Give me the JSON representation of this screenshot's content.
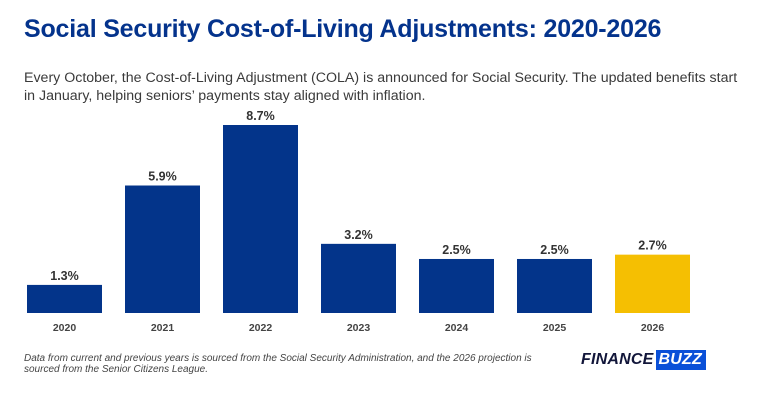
{
  "header": {
    "title": "Social Security Cost-of-Living Adjustments: 2020-2026",
    "subtitle": "Every October, the Cost-of-Living Adjustment (COLA) is announced for Social Security. The updated benefits start in January, helping seniors’ payments stay aligned with inflation."
  },
  "chart_data": {
    "type": "bar",
    "title": "Social Security Cost-of-Living Adjustments: 2020-2026",
    "xlabel": "",
    "ylabel": "",
    "categories": [
      "2020",
      "2021",
      "2022",
      "2023",
      "2024",
      "2025",
      "2026"
    ],
    "values": [
      1.3,
      5.9,
      8.7,
      3.2,
      2.5,
      2.5,
      2.7
    ],
    "value_labels": [
      "1.3%",
      "5.9%",
      "8.7%",
      "3.2%",
      "2.5%",
      "2.5%",
      "2.7%"
    ],
    "projected": [
      false,
      false,
      false,
      false,
      false,
      false,
      true
    ],
    "ylim": [
      0,
      8.7
    ],
    "grid": false,
    "legend": "none",
    "colors": {
      "actual": "#03348a",
      "projected": "#f5bf02"
    }
  },
  "footer": {
    "note": "Data from current and previous years is sourced from the Social Security Administration, and the 2026 projection is sourced from the Senior Citizens League.",
    "logo_part1": "FINANCE",
    "logo_part2": "BUZZ"
  }
}
